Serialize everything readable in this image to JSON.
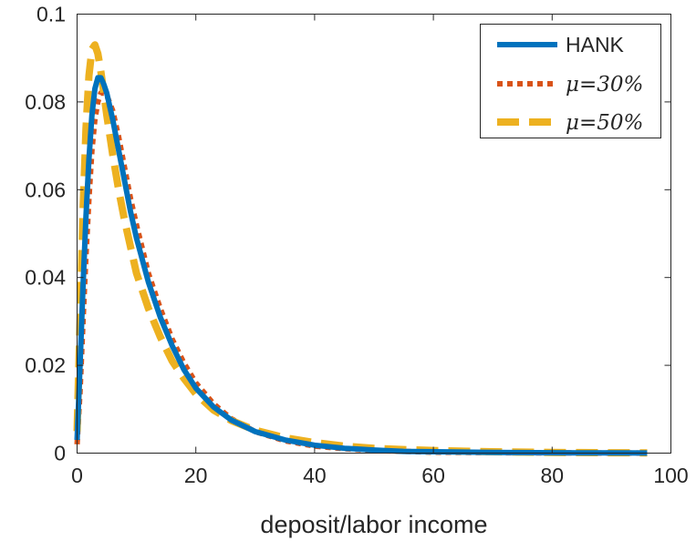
{
  "chart_data": {
    "type": "line",
    "title": "",
    "xlabel": "deposit/labor income",
    "ylabel": "",
    "xlim": [
      0,
      100
    ],
    "ylim": [
      0,
      0.1
    ],
    "xticks": [
      0,
      20,
      40,
      60,
      80,
      100
    ],
    "xtick_labels": [
      "0",
      "20",
      "40",
      "60",
      "80",
      "100"
    ],
    "yticks": [
      0,
      0.02,
      0.04,
      0.06,
      0.08,
      0.1
    ],
    "ytick_labels": [
      "0",
      "0.02",
      "0.04",
      "0.06",
      "0.08",
      "0.1"
    ],
    "grid": false,
    "legend_position": "top-right",
    "series": [
      {
        "name": "HANK",
        "color": "#0072BD",
        "style": "solid",
        "x": [
          0,
          0.5,
          1,
          1.5,
          2,
          2.5,
          3,
          3.5,
          4,
          4.5,
          5,
          6,
          7,
          8,
          9,
          10,
          12,
          14,
          16,
          18,
          20,
          23,
          26,
          30,
          35,
          40,
          45,
          50,
          55,
          60,
          70,
          80,
          90,
          96
        ],
        "y": [
          0.003,
          0.02,
          0.038,
          0.054,
          0.067,
          0.077,
          0.083,
          0.0855,
          0.0855,
          0.084,
          0.082,
          0.076,
          0.069,
          0.062,
          0.055,
          0.049,
          0.039,
          0.031,
          0.0245,
          0.019,
          0.0148,
          0.0105,
          0.0075,
          0.0049,
          0.003,
          0.0018,
          0.0011,
          0.0007,
          0.0004,
          0.0003,
          0.00015,
          8e-05,
          4e-05,
          2e-05
        ]
      },
      {
        "name": "μ=30%",
        "color": "#D95319",
        "style": "dotted",
        "x": [
          0,
          0.5,
          1,
          1.5,
          2,
          2.5,
          3,
          3.5,
          4,
          4.5,
          5,
          6,
          7,
          8,
          9,
          10,
          12,
          14,
          16,
          18,
          20,
          23,
          26,
          30,
          35,
          40,
          45,
          50,
          55,
          60,
          70,
          80,
          90,
          96
        ],
        "y": [
          0.002,
          0.014,
          0.03,
          0.045,
          0.058,
          0.069,
          0.076,
          0.08,
          0.082,
          0.082,
          0.0815,
          0.078,
          0.072,
          0.065,
          0.058,
          0.052,
          0.041,
          0.033,
          0.026,
          0.0205,
          0.016,
          0.0112,
          0.0078,
          0.0049,
          0.0028,
          0.0016,
          0.001,
          0.0006,
          0.0004,
          0.0002,
          0.0001,
          5e-05,
          2e-05,
          1e-05
        ]
      },
      {
        "name": "μ=50%",
        "color": "#EDB120",
        "style": "dashed",
        "x": [
          0,
          0.5,
          1,
          1.5,
          2,
          2.5,
          3,
          3.5,
          4,
          4.5,
          5,
          6,
          7,
          8,
          9,
          10,
          12,
          14,
          16,
          18,
          20,
          23,
          26,
          30,
          35,
          40,
          45,
          50,
          55,
          60,
          70,
          80,
          90,
          96
        ],
        "y": [
          0.005,
          0.03,
          0.055,
          0.074,
          0.086,
          0.092,
          0.093,
          0.091,
          0.087,
          0.082,
          0.077,
          0.068,
          0.06,
          0.053,
          0.047,
          0.041,
          0.033,
          0.0265,
          0.021,
          0.017,
          0.0135,
          0.0098,
          0.0074,
          0.0052,
          0.0035,
          0.0024,
          0.0016,
          0.0011,
          0.0008,
          0.0006,
          0.0003,
          0.00015,
          8e-05,
          5e-05
        ]
      }
    ]
  }
}
